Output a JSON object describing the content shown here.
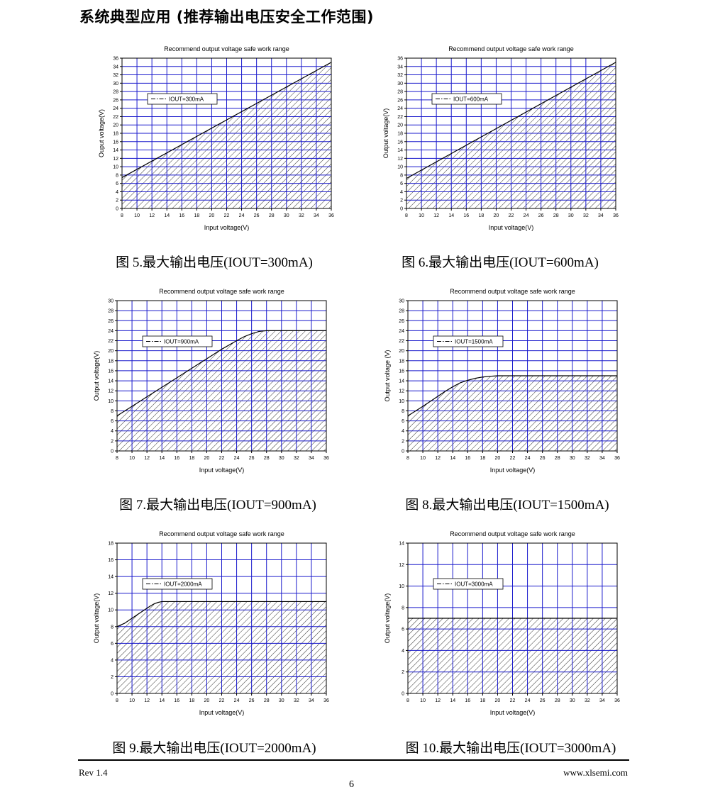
{
  "page": {
    "section_title": "系统典型应用 (推荐输出电压安全工作范围)",
    "footer": {
      "revision": "Rev 1.4",
      "website": "www.xlsemi.com",
      "page_number": "6"
    }
  },
  "colors": {
    "grid": "#1a1acc",
    "curve": "#000000",
    "hatch": "#000000",
    "background": "#ffffff"
  },
  "chart_data": [
    {
      "type": "area",
      "title": "Recommend output voltage safe work range",
      "xlabel": "Input voltage(V)",
      "ylabel": "Ouput voltage(V)",
      "legend": "IOUT=300mA",
      "legend_placement": "top-left",
      "caption": "图 5.最大输出电压(IOUT=300mA)",
      "xlim": [
        8,
        36
      ],
      "ylim": [
        0,
        36
      ],
      "x_ticks": [
        8,
        10,
        12,
        14,
        16,
        18,
        20,
        22,
        24,
        26,
        28,
        30,
        32,
        34,
        36
      ],
      "y_ticks": [
        0,
        2,
        4,
        6,
        8,
        10,
        12,
        14,
        16,
        18,
        20,
        22,
        24,
        26,
        28,
        30,
        32,
        34,
        36
      ],
      "grid": true,
      "x": [
        8,
        36
      ],
      "y": [
        7.4,
        35
      ]
    },
    {
      "type": "area",
      "title": "Recommend output voltage safe work range",
      "xlabel": "Input voltage(V)",
      "ylabel": "Output voltage(V)",
      "legend": "IOUT=600mA",
      "legend_placement": "top-left",
      "caption": "图 6.最大输出电压(IOUT=600mA)",
      "xlim": [
        8,
        36
      ],
      "ylim": [
        0,
        36
      ],
      "x_ticks": [
        8,
        10,
        12,
        14,
        16,
        18,
        20,
        22,
        24,
        26,
        28,
        30,
        32,
        34,
        36
      ],
      "y_ticks": [
        0,
        2,
        4,
        6,
        8,
        10,
        12,
        14,
        16,
        18,
        20,
        22,
        24,
        26,
        28,
        30,
        32,
        34,
        36
      ],
      "grid": true,
      "x": [
        8,
        36
      ],
      "y": [
        7.2,
        35
      ]
    },
    {
      "type": "area",
      "title": "Recommend output voltage safe work range",
      "xlabel": "Input voltage(V)",
      "ylabel": "Output voltage(V)",
      "legend": "IOUT=900mA",
      "legend_placement": "top-left",
      "caption": "图 7.最大输出电压(IOUT=900mA)",
      "xlim": [
        8,
        36
      ],
      "ylim": [
        0,
        30
      ],
      "x_ticks": [
        8,
        10,
        12,
        14,
        16,
        18,
        20,
        22,
        24,
        26,
        28,
        30,
        32,
        34,
        36
      ],
      "y_ticks": [
        0,
        2,
        4,
        6,
        8,
        10,
        12,
        14,
        16,
        18,
        20,
        22,
        24,
        26,
        28,
        30
      ],
      "grid": true,
      "x": [
        8,
        10,
        12,
        14,
        16,
        18,
        20,
        22,
        24,
        25,
        26,
        27,
        28,
        30,
        32,
        34,
        36
      ],
      "y": [
        7,
        8.9,
        10.8,
        12.7,
        14.6,
        16.5,
        18.4,
        20.3,
        22.0,
        22.8,
        23.4,
        23.85,
        24,
        24,
        24,
        24,
        24
      ]
    },
    {
      "type": "area",
      "title": "Recommend output voltage safe work range",
      "xlabel": "Input voltage(V)",
      "ylabel": "Output voltage (V)",
      "legend": "IOUT=1500mA",
      "legend_placement": "top-left",
      "caption": "图 8.最大输出电压(IOUT=1500mA)",
      "xlim": [
        8,
        36
      ],
      "ylim": [
        0,
        30
      ],
      "x_ticks": [
        8,
        10,
        12,
        14,
        16,
        18,
        20,
        22,
        24,
        26,
        28,
        30,
        32,
        34,
        36
      ],
      "y_ticks": [
        0,
        2,
        4,
        6,
        8,
        10,
        12,
        14,
        16,
        18,
        20,
        22,
        24,
        26,
        28,
        30
      ],
      "grid": true,
      "x": [
        8,
        10,
        12,
        13,
        14,
        15,
        16,
        17,
        18,
        19,
        20,
        21,
        22,
        24,
        26,
        28,
        30,
        32,
        34,
        36
      ],
      "y": [
        7,
        8.9,
        10.9,
        11.9,
        12.8,
        13.6,
        14.1,
        14.5,
        14.75,
        14.9,
        15,
        15,
        15,
        15,
        15,
        15,
        15,
        15,
        15,
        15
      ]
    },
    {
      "type": "area",
      "title": "Recommend output voltage safe work range",
      "xlabel": "Input voltage(V)",
      "ylabel": "Output voltage(V)",
      "legend": "IOUT=2000mA",
      "legend_placement": "top-left",
      "caption": "图 9.最大输出电压(IOUT=2000mA)",
      "xlim": [
        8,
        36
      ],
      "ylim": [
        0,
        18
      ],
      "x_ticks": [
        8,
        10,
        12,
        14,
        16,
        18,
        20,
        22,
        24,
        26,
        28,
        30,
        32,
        34,
        36
      ],
      "y_ticks": [
        0,
        2,
        4,
        6,
        8,
        10,
        12,
        14,
        16,
        18
      ],
      "grid": true,
      "x": [
        8,
        9,
        10,
        11,
        12,
        12.5,
        13,
        13.5,
        14,
        15,
        16,
        18,
        20,
        24,
        28,
        32,
        36
      ],
      "y": [
        8,
        8.4,
        9.0,
        9.6,
        10.2,
        10.5,
        10.75,
        10.9,
        11,
        11,
        11,
        11,
        11,
        11,
        11,
        11,
        11
      ]
    },
    {
      "type": "area",
      "title": "Recommend output voltage safe work range",
      "xlabel": "Input voltage(V)",
      "ylabel": "Output voltage(V)",
      "legend": "IOUT=3000mA",
      "legend_placement": "top-left",
      "caption": "图 10.最大输出电压(IOUT=3000mA)",
      "xlim": [
        8,
        36
      ],
      "ylim": [
        0,
        14
      ],
      "x_ticks": [
        8,
        10,
        12,
        14,
        16,
        18,
        20,
        22,
        24,
        26,
        28,
        30,
        32,
        34,
        36
      ],
      "y_ticks": [
        0,
        2,
        4,
        6,
        8,
        10,
        12,
        14
      ],
      "grid": true,
      "x": [
        8,
        36
      ],
      "y": [
        7,
        7
      ]
    }
  ]
}
